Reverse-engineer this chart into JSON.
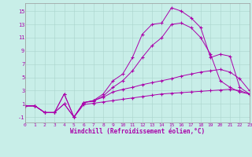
{
  "xlabel": "Windchill (Refroidissement éolien,°C)",
  "background_color": "#c8eee8",
  "line_color": "#aa00aa",
  "xlim": [
    0,
    23
  ],
  "ylim": [
    -1.8,
    16.2
  ],
  "yticks": [
    -1,
    1,
    3,
    5,
    7,
    9,
    11,
    13,
    15
  ],
  "xticks": [
    0,
    1,
    2,
    3,
    4,
    5,
    6,
    7,
    8,
    9,
    10,
    11,
    12,
    13,
    14,
    15,
    16,
    17,
    18,
    19,
    20,
    21,
    22,
    23
  ],
  "lines": [
    {
      "x": [
        0,
        1,
        2,
        3,
        4,
        5,
        6,
        7,
        8,
        9,
        10,
        11,
        12,
        13,
        14,
        15,
        16,
        17,
        18,
        19,
        20,
        21,
        22,
        23
      ],
      "y": [
        0.7,
        0.7,
        -0.3,
        -0.3,
        1.0,
        -1.0,
        0.9,
        1.1,
        1.3,
        1.5,
        1.7,
        1.9,
        2.1,
        2.3,
        2.5,
        2.6,
        2.7,
        2.8,
        2.9,
        3.0,
        3.1,
        3.2,
        3.0,
        2.5
      ]
    },
    {
      "x": [
        0,
        1,
        2,
        3,
        4,
        5,
        6,
        7,
        8,
        9,
        10,
        11,
        12,
        13,
        14,
        15,
        16,
        17,
        18,
        19,
        20,
        21,
        22,
        23
      ],
      "y": [
        0.7,
        0.7,
        -0.3,
        -0.3,
        2.5,
        -1.0,
        1.2,
        1.5,
        2.0,
        2.8,
        3.2,
        3.5,
        3.9,
        4.2,
        4.5,
        4.8,
        5.2,
        5.5,
        5.8,
        6.0,
        6.2,
        5.8,
        4.8,
        3.0
      ]
    },
    {
      "x": [
        0,
        1,
        2,
        3,
        4,
        5,
        6,
        7,
        8,
        9,
        10,
        11,
        12,
        13,
        14,
        15,
        16,
        17,
        18,
        19,
        20,
        21,
        22,
        23
      ],
      "y": [
        0.7,
        0.7,
        -0.3,
        -0.3,
        1.0,
        -1.0,
        1.2,
        1.4,
        2.2,
        3.5,
        4.5,
        6.0,
        8.0,
        9.8,
        11.0,
        13.0,
        13.2,
        12.5,
        11.0,
        8.5,
        4.5,
        3.5,
        2.8,
        2.5
      ]
    },
    {
      "x": [
        0,
        1,
        2,
        3,
        4,
        5,
        6,
        7,
        8,
        9,
        10,
        11,
        12,
        13,
        14,
        15,
        16,
        17,
        18,
        19,
        20,
        21,
        22,
        23
      ],
      "y": [
        0.7,
        0.7,
        -0.3,
        -0.3,
        2.5,
        -1.0,
        1.2,
        1.5,
        2.5,
        4.5,
        5.5,
        8.0,
        11.5,
        13.0,
        13.2,
        15.5,
        15.0,
        14.0,
        12.5,
        8.0,
        8.5,
        8.2,
        3.5,
        2.5
      ]
    }
  ]
}
